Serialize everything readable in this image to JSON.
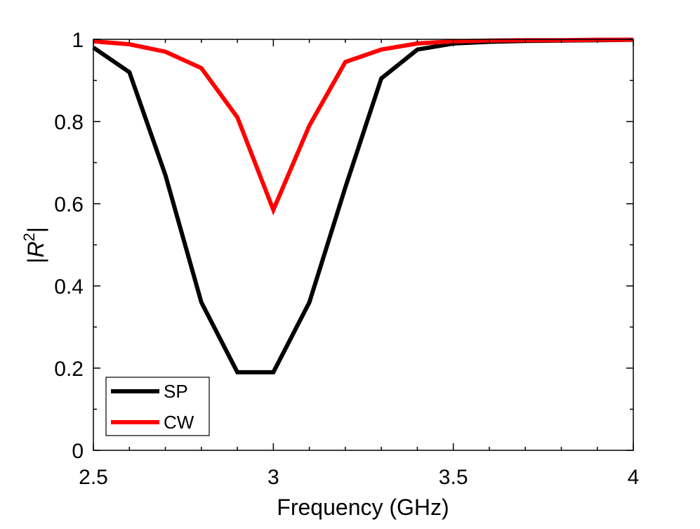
{
  "chart_data": {
    "type": "line",
    "xlabel": "Frequency (GHz)",
    "ylabel_prefix": "|",
    "ylabel_var": "R",
    "ylabel_sup": "2",
    "ylabel_suffix": "|",
    "xlim": [
      2.5,
      4
    ],
    "ylim": [
      0,
      1
    ],
    "xticks": [
      2.5,
      3,
      3.5,
      4
    ],
    "xtick_labels": [
      "2.5",
      "3",
      "3.5",
      "4"
    ],
    "yticks": [
      0,
      0.2,
      0.4,
      0.6,
      0.8,
      1
    ],
    "ytick_labels": [
      "0",
      "0.2",
      "0.4",
      "0.6",
      "0.8",
      "1"
    ],
    "grid": false,
    "legend_position": "bottom-left",
    "series": [
      {
        "name": "SP",
        "color": "#000000",
        "x": [
          2.5,
          2.6,
          2.7,
          2.8,
          2.9,
          3.0,
          3.1,
          3.2,
          3.3,
          3.4,
          3.5,
          3.6,
          3.7,
          3.8,
          3.9,
          4.0
        ],
        "values": [
          0.98,
          0.92,
          0.67,
          0.36,
          0.19,
          0.19,
          0.36,
          0.64,
          0.905,
          0.975,
          0.99,
          0.994,
          0.996,
          0.997,
          0.998,
          0.999
        ]
      },
      {
        "name": "CW",
        "color": "#ff0000",
        "x": [
          2.5,
          2.6,
          2.7,
          2.8,
          2.9,
          3.0,
          3.1,
          3.2,
          3.3,
          3.4,
          3.5,
          3.6,
          3.7,
          3.8,
          3.9,
          4.0
        ],
        "values": [
          0.995,
          0.988,
          0.97,
          0.93,
          0.81,
          0.585,
          0.79,
          0.945,
          0.975,
          0.99,
          0.995,
          0.997,
          0.998,
          0.998,
          0.999,
          0.999
        ]
      }
    ]
  }
}
